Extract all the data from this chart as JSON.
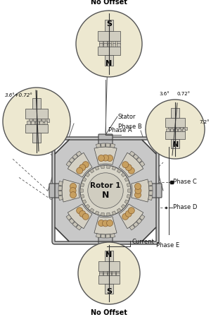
{
  "bg_color": "#ffffff",
  "circle_bg": "#ede8d0",
  "stator_bg": "#c8c8c8",
  "stator_edge": "#444444",
  "pole_bg": "#d0cdc0",
  "tooth_bg": "#e0ddd0",
  "coil_fill": "#c8a060",
  "rotor_bg": "#d8d5c8",
  "labels": {
    "no_offset_top": "No Offset",
    "no_offset_bottom": "No Offset",
    "stator": "Stator",
    "phase_a": "Phase A",
    "phase_b": "Phase B",
    "phase_c": "Phase C",
    "phase_d": "Phase D",
    "phase_e": "Phase E",
    "current": "Current",
    "rotor1": "Rotor 1",
    "rotor_n": "N",
    "angle_left1": "3.6°",
    "angle_left2": "+0.72°",
    "angle_right1": "3.6°",
    "angle_right2": "0.72°",
    "angle_right3": "7.2°",
    "s_top": "S",
    "n_top": "N",
    "n_bottom": "N",
    "s_bottom": "S",
    "n_right": "N"
  }
}
